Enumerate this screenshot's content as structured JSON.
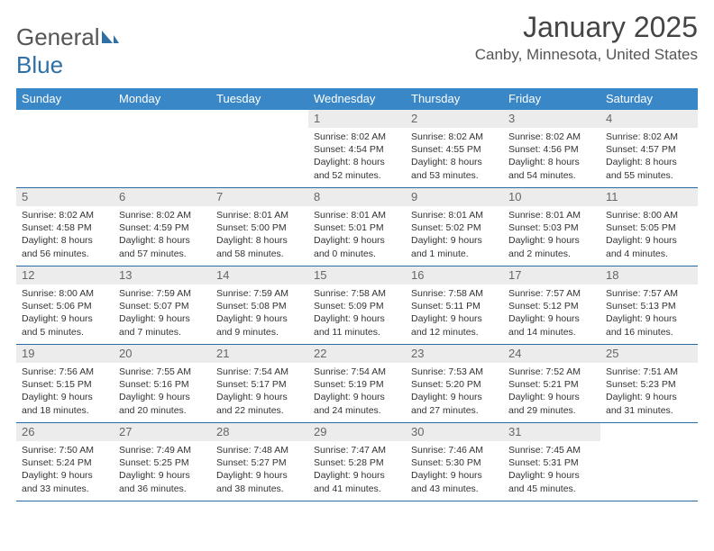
{
  "logo": {
    "text_general": "General",
    "text_blue": "Blue"
  },
  "title": "January 2025",
  "location": "Canby, Minnesota, United States",
  "colors": {
    "header_bg": "#3a87c7",
    "header_text": "#ffffff",
    "daynum_bg": "#ececec",
    "week_border": "#2b6aa3",
    "text": "#333333",
    "logo_gray": "#555555",
    "logo_blue": "#2f6fa7"
  },
  "days_of_week": [
    "Sunday",
    "Monday",
    "Tuesday",
    "Wednesday",
    "Thursday",
    "Friday",
    "Saturday"
  ],
  "weeks": [
    [
      {
        "empty": true
      },
      {
        "empty": true
      },
      {
        "empty": true
      },
      {
        "num": "1",
        "sunrise": "8:02 AM",
        "sunset": "4:54 PM",
        "dl_h": "8",
        "dl_m": "52"
      },
      {
        "num": "2",
        "sunrise": "8:02 AM",
        "sunset": "4:55 PM",
        "dl_h": "8",
        "dl_m": "53"
      },
      {
        "num": "3",
        "sunrise": "8:02 AM",
        "sunset": "4:56 PM",
        "dl_h": "8",
        "dl_m": "54"
      },
      {
        "num": "4",
        "sunrise": "8:02 AM",
        "sunset": "4:57 PM",
        "dl_h": "8",
        "dl_m": "55"
      }
    ],
    [
      {
        "num": "5",
        "sunrise": "8:02 AM",
        "sunset": "4:58 PM",
        "dl_h": "8",
        "dl_m": "56"
      },
      {
        "num": "6",
        "sunrise": "8:02 AM",
        "sunset": "4:59 PM",
        "dl_h": "8",
        "dl_m": "57"
      },
      {
        "num": "7",
        "sunrise": "8:01 AM",
        "sunset": "5:00 PM",
        "dl_h": "8",
        "dl_m": "58"
      },
      {
        "num": "8",
        "sunrise": "8:01 AM",
        "sunset": "5:01 PM",
        "dl_h": "9",
        "dl_m": "0"
      },
      {
        "num": "9",
        "sunrise": "8:01 AM",
        "sunset": "5:02 PM",
        "dl_h": "9",
        "dl_m": "1",
        "singular": true
      },
      {
        "num": "10",
        "sunrise": "8:01 AM",
        "sunset": "5:03 PM",
        "dl_h": "9",
        "dl_m": "2"
      },
      {
        "num": "11",
        "sunrise": "8:00 AM",
        "sunset": "5:05 PM",
        "dl_h": "9",
        "dl_m": "4"
      }
    ],
    [
      {
        "num": "12",
        "sunrise": "8:00 AM",
        "sunset": "5:06 PM",
        "dl_h": "9",
        "dl_m": "5"
      },
      {
        "num": "13",
        "sunrise": "7:59 AM",
        "sunset": "5:07 PM",
        "dl_h": "9",
        "dl_m": "7"
      },
      {
        "num": "14",
        "sunrise": "7:59 AM",
        "sunset": "5:08 PM",
        "dl_h": "9",
        "dl_m": "9"
      },
      {
        "num": "15",
        "sunrise": "7:58 AM",
        "sunset": "5:09 PM",
        "dl_h": "9",
        "dl_m": "11"
      },
      {
        "num": "16",
        "sunrise": "7:58 AM",
        "sunset": "5:11 PM",
        "dl_h": "9",
        "dl_m": "12"
      },
      {
        "num": "17",
        "sunrise": "7:57 AM",
        "sunset": "5:12 PM",
        "dl_h": "9",
        "dl_m": "14"
      },
      {
        "num": "18",
        "sunrise": "7:57 AM",
        "sunset": "5:13 PM",
        "dl_h": "9",
        "dl_m": "16"
      }
    ],
    [
      {
        "num": "19",
        "sunrise": "7:56 AM",
        "sunset": "5:15 PM",
        "dl_h": "9",
        "dl_m": "18"
      },
      {
        "num": "20",
        "sunrise": "7:55 AM",
        "sunset": "5:16 PM",
        "dl_h": "9",
        "dl_m": "20"
      },
      {
        "num": "21",
        "sunrise": "7:54 AM",
        "sunset": "5:17 PM",
        "dl_h": "9",
        "dl_m": "22"
      },
      {
        "num": "22",
        "sunrise": "7:54 AM",
        "sunset": "5:19 PM",
        "dl_h": "9",
        "dl_m": "24"
      },
      {
        "num": "23",
        "sunrise": "7:53 AM",
        "sunset": "5:20 PM",
        "dl_h": "9",
        "dl_m": "27"
      },
      {
        "num": "24",
        "sunrise": "7:52 AM",
        "sunset": "5:21 PM",
        "dl_h": "9",
        "dl_m": "29"
      },
      {
        "num": "25",
        "sunrise": "7:51 AM",
        "sunset": "5:23 PM",
        "dl_h": "9",
        "dl_m": "31"
      }
    ],
    [
      {
        "num": "26",
        "sunrise": "7:50 AM",
        "sunset": "5:24 PM",
        "dl_h": "9",
        "dl_m": "33"
      },
      {
        "num": "27",
        "sunrise": "7:49 AM",
        "sunset": "5:25 PM",
        "dl_h": "9",
        "dl_m": "36"
      },
      {
        "num": "28",
        "sunrise": "7:48 AM",
        "sunset": "5:27 PM",
        "dl_h": "9",
        "dl_m": "38"
      },
      {
        "num": "29",
        "sunrise": "7:47 AM",
        "sunset": "5:28 PM",
        "dl_h": "9",
        "dl_m": "41"
      },
      {
        "num": "30",
        "sunrise": "7:46 AM",
        "sunset": "5:30 PM",
        "dl_h": "9",
        "dl_m": "43"
      },
      {
        "num": "31",
        "sunrise": "7:45 AM",
        "sunset": "5:31 PM",
        "dl_h": "9",
        "dl_m": "45"
      },
      {
        "empty": true
      }
    ]
  ]
}
